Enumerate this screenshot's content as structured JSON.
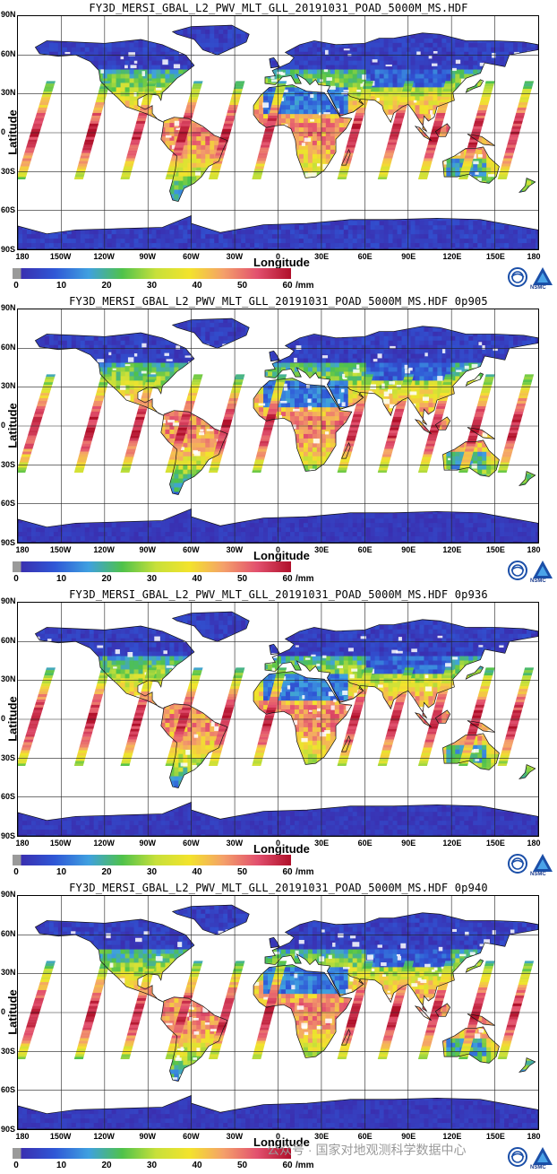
{
  "panels": [
    {
      "title": "FY3D_MERSI_GBAL_L2_PWV_MLT_GLL_20191031_POAD_5000M_MS.HDF"
    },
    {
      "title": "FY3D_MERSI_GBAL_L2_PWV_MLT_GLL_20191031_POAD_5000M_MS.HDF 0p905"
    },
    {
      "title": "FY3D_MERSI_GBAL_L2_PWV_MLT_GLL_20191031_POAD_5000M_MS.HDF 0p936"
    },
    {
      "title": "FY3D_MERSI_GBAL_L2_PWV_MLT_GLL_20191031_POAD_5000M_MS.HDF 0p940"
    }
  ],
  "axes": {
    "xlabel": "Longitude",
    "ylabel": "Latitude",
    "lat_ticks": [
      "90N",
      "60N",
      "30N",
      "0",
      "30S",
      "60S",
      "90S"
    ],
    "lon_ticks": [
      "180",
      "150W",
      "120W",
      "90W",
      "60W",
      "30W",
      "0",
      "30E",
      "60E",
      "90E",
      "120E",
      "150E",
      "180"
    ]
  },
  "colorbar": {
    "ticks": [
      "0",
      "10",
      "20",
      "30",
      "40",
      "50",
      "60"
    ],
    "unit": "/mm",
    "min": 0,
    "max": 60,
    "colors": [
      "#3a2fb0",
      "#2f57d6",
      "#3fa0e0",
      "#4fc24b",
      "#c7e03a",
      "#f3e32c",
      "#f4a06a",
      "#e2506e",
      "#b0102a"
    ]
  },
  "logos": {
    "nsmc": "NSMC",
    "cma_icon": "cma-logo-icon",
    "nsmc_icon": "nsmc-logo-icon"
  },
  "watermark": "公众号 · 国家对地观测科学数据中心"
}
